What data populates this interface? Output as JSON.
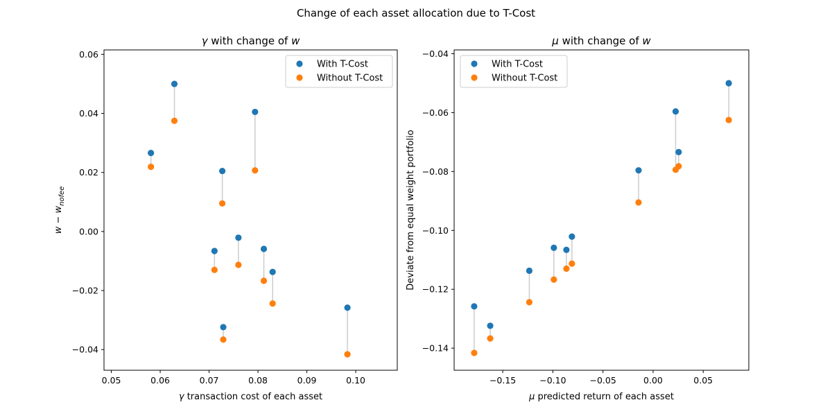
{
  "figure": {
    "title": "Change of each asset allocation due to T-Cost"
  },
  "chart_data": [
    {
      "type": "scatter",
      "title_symbol": "γ",
      "title_text": " with change of ",
      "title_var": "w",
      "xlabel_symbol": "γ",
      "xlabel_text": " transaction cost of each asset",
      "ylabel": "w − w_nofee",
      "ylabel_main": "w − w",
      "ylabel_sub": "nofee",
      "xlim": [
        0.0485,
        0.1085
      ],
      "ylim": [
        -0.047,
        0.0615
      ],
      "xticks": [
        0.05,
        0.06,
        0.07,
        0.08,
        0.09,
        0.1
      ],
      "xtick_labels": [
        "0.05",
        "0.06",
        "0.07",
        "0.08",
        "0.09",
        "0.10"
      ],
      "yticks": [
        -0.04,
        -0.02,
        0.0,
        0.02,
        0.04,
        0.06
      ],
      "ytick_labels": [
        "−0.04",
        "−0.02",
        "0.00",
        "0.02",
        "0.04",
        "0.06"
      ],
      "legend_position": "top-right",
      "series": [
        {
          "name": "With T-Cost",
          "color": "#1f77b4",
          "x": [
            0.0581,
            0.0629,
            0.0711,
            0.0727,
            0.0729,
            0.076,
            0.0794,
            0.0812,
            0.083,
            0.0983
          ],
          "y": [
            0.0266,
            0.05,
            -0.0066,
            0.0205,
            -0.0324,
            -0.0021,
            0.0405,
            -0.0059,
            -0.0137,
            -0.0258
          ]
        },
        {
          "name": "Without T-Cost",
          "color": "#ff7f0e",
          "x": [
            0.0581,
            0.0629,
            0.0711,
            0.0727,
            0.0729,
            0.076,
            0.0794,
            0.0812,
            0.083,
            0.0983
          ],
          "y": [
            0.0219,
            0.0375,
            -0.013,
            0.0095,
            -0.0366,
            -0.0113,
            0.0207,
            -0.0167,
            -0.0244,
            -0.0416
          ]
        }
      ],
      "connector_color": "#cccccc"
    },
    {
      "type": "scatter",
      "title_symbol": "μ",
      "title_text": " with change of ",
      "title_var": "w",
      "xlabel_symbol": "μ",
      "xlabel_text": " predicted return of each asset",
      "ylabel": "Deviate from equal weight portfolio",
      "xlim": [
        -0.1985,
        0.0955
      ],
      "ylim": [
        -0.1475,
        -0.0387
      ],
      "xticks": [
        -0.15,
        -0.1,
        -0.05,
        0.0,
        0.05
      ],
      "xtick_labels": [
        "−0.15",
        "−0.10",
        "−0.05",
        "0.00",
        "0.05"
      ],
      "yticks": [
        -0.14,
        -0.12,
        -0.1,
        -0.08,
        -0.06,
        -0.04
      ],
      "ytick_labels": [
        "−0.14",
        "−0.12",
        "−0.10",
        "−0.08",
        "−0.06",
        "−0.04"
      ],
      "legend_position": "top-left",
      "series": [
        {
          "name": "With T-Cost",
          "color": "#1f77b4",
          "x": [
            -0.1785,
            -0.1625,
            -0.1235,
            -0.099,
            -0.0865,
            -0.081,
            -0.0145,
            0.0225,
            0.0255,
            0.0755
          ],
          "y": [
            -0.1258,
            -0.1324,
            -0.1137,
            -0.1059,
            -0.1066,
            -0.1021,
            -0.0796,
            -0.0596,
            -0.0734,
            -0.05
          ]
        },
        {
          "name": "Without T-Cost",
          "color": "#ff7f0e",
          "x": [
            -0.1785,
            -0.1625,
            -0.1235,
            -0.099,
            -0.0865,
            -0.081,
            -0.0145,
            0.0225,
            0.0255,
            0.0755
          ],
          "y": [
            -0.1416,
            -0.1367,
            -0.1244,
            -0.1167,
            -0.113,
            -0.1113,
            -0.0905,
            -0.0794,
            -0.0782,
            -0.0625
          ]
        }
      ],
      "connector_color": "#cccccc"
    }
  ]
}
